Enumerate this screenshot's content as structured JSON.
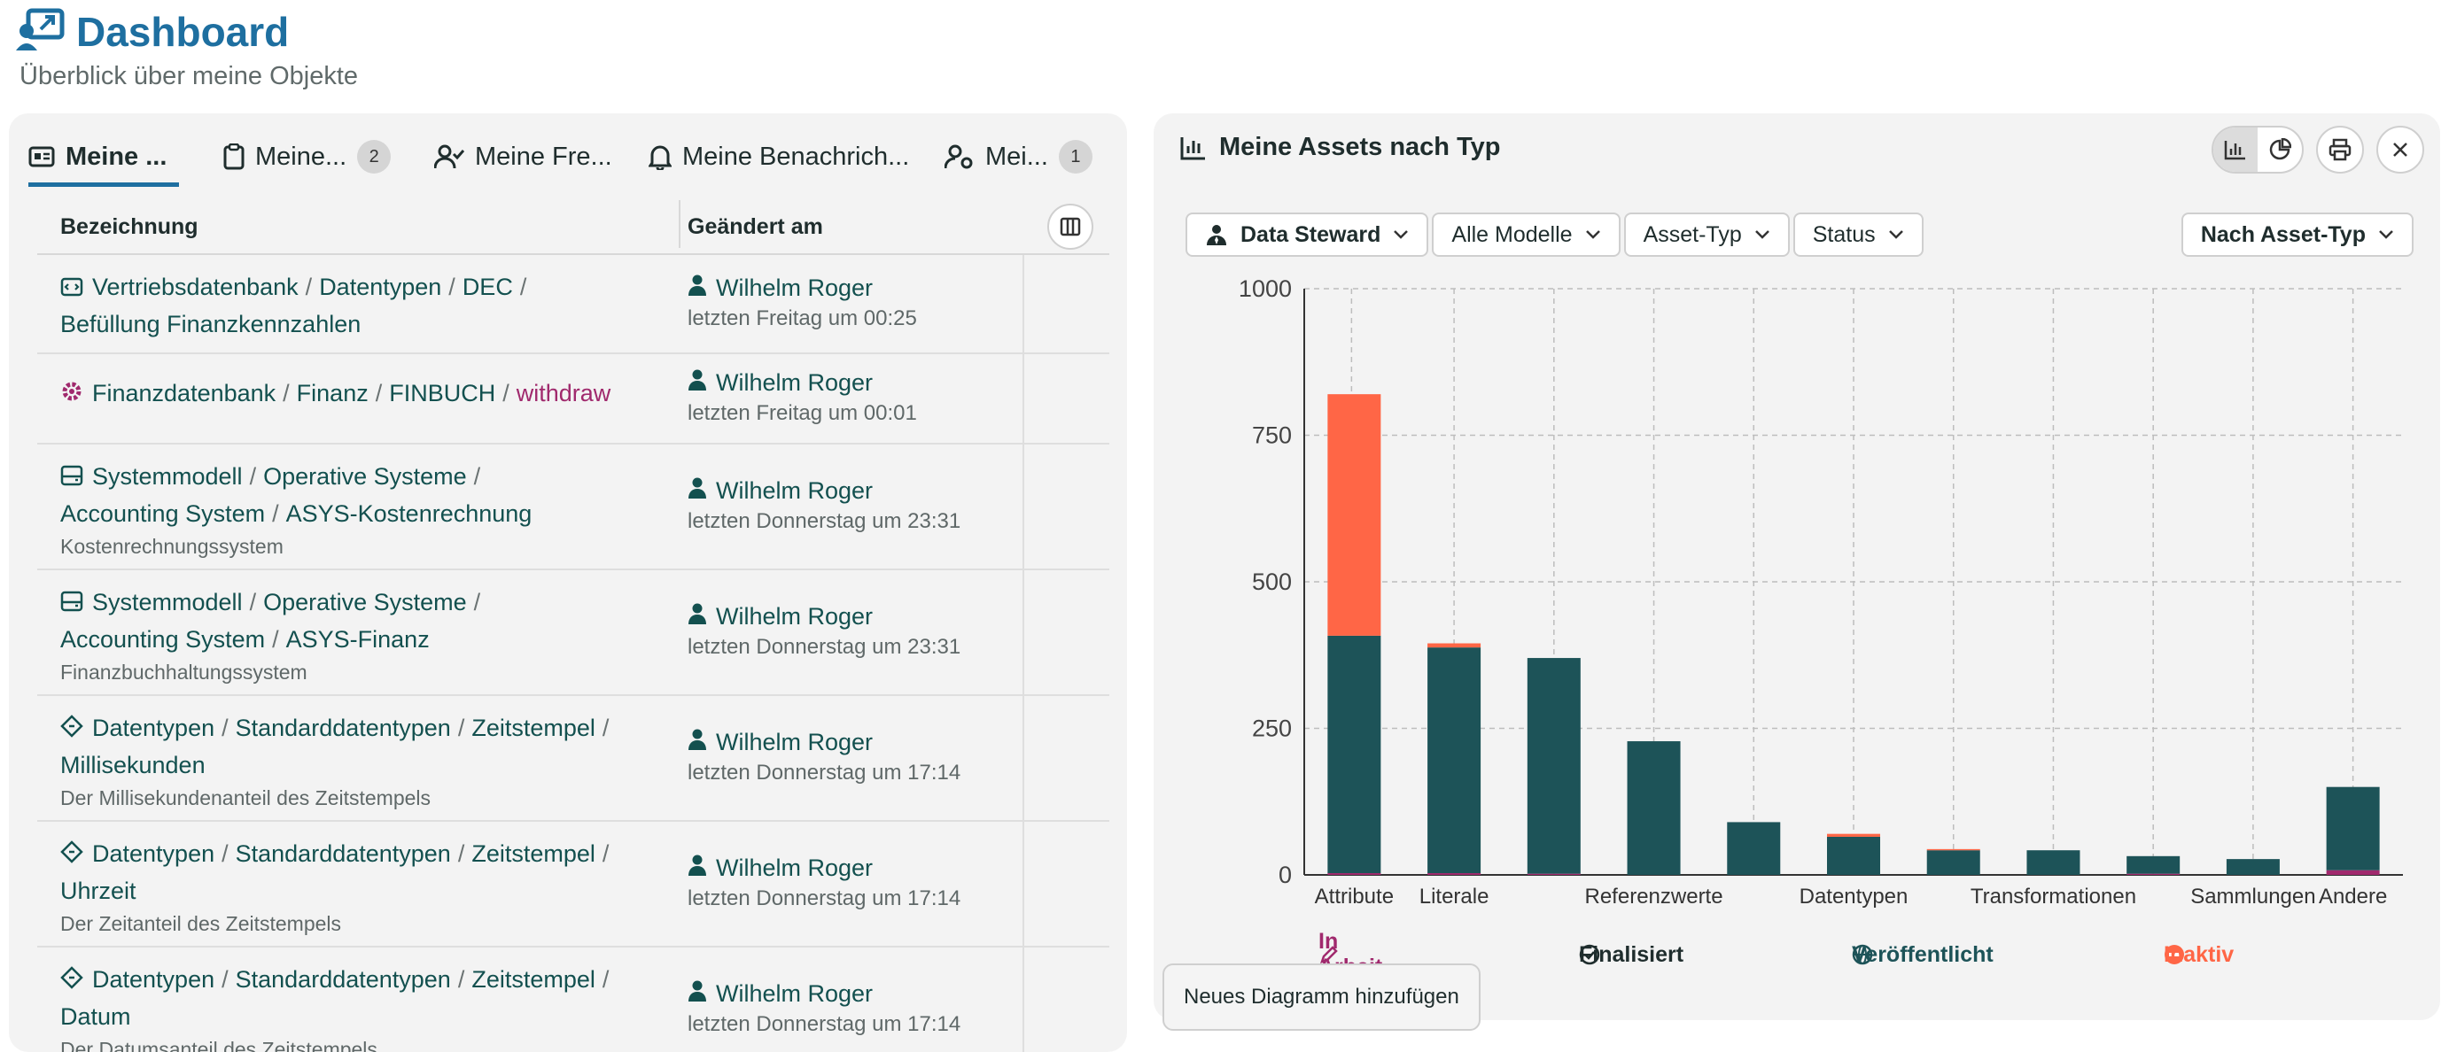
{
  "header": {
    "title": "Dashboard",
    "subtitle": "Überblick über meine Objekte"
  },
  "tabs": [
    {
      "label": "Meine ...",
      "active": true
    },
    {
      "label": "Meine...",
      "badge": "2"
    },
    {
      "label": "Meine Fre..."
    },
    {
      "label": "Meine Benachrich..."
    },
    {
      "label": "Mei...",
      "badge": "1"
    }
  ],
  "table": {
    "headers": {
      "name": "Bezeichnung",
      "changed": "Geändert am"
    },
    "rows": [
      {
        "icon": "code-icon",
        "line1": [
          "Vertriebsdatenbank",
          "Datentypen",
          "DEC"
        ],
        "line2": [
          "Befüllung Finanzkennzahlen"
        ],
        "user": "Wilhelm Roger",
        "when": "letzten Freitag um 00:25"
      },
      {
        "icon": "gear-icon",
        "line1": [
          "Finanzdatenbank",
          "Finanz",
          "FINBUCH"
        ],
        "line1_last": "withdraw",
        "user": "Wilhelm Roger",
        "when": "letzten Freitag um 00:01"
      },
      {
        "icon": "server-icon",
        "line1": [
          "Systemmodell",
          "Operative Systeme"
        ],
        "line2": [
          "Accounting System",
          "ASYS-Kostenrechnung"
        ],
        "sub": "Kostenrechnungssystem",
        "user": "Wilhelm Roger",
        "when": "letzten Donnerstag um 23:31"
      },
      {
        "icon": "server-icon",
        "line1": [
          "Systemmodell",
          "Operative Systeme"
        ],
        "line2": [
          "Accounting System",
          "ASYS-Finanz"
        ],
        "sub": "Finanzbuchhaltungssystem",
        "user": "Wilhelm Roger",
        "when": "letzten Donnerstag um 23:31"
      },
      {
        "icon": "diamond-icon",
        "line1": [
          "Datentypen",
          "Standarddatentypen",
          "Zeitstempel"
        ],
        "line2": [
          "Millisekunden"
        ],
        "sub": "Der Millisekundenanteil des Zeitstempels",
        "user": "Wilhelm Roger",
        "when": "letzten Donnerstag um 17:14"
      },
      {
        "icon": "diamond-icon",
        "line1": [
          "Datentypen",
          "Standarddatentypen",
          "Zeitstempel"
        ],
        "line2": [
          "Uhrzeit"
        ],
        "sub": "Der Zeitanteil des Zeitstempels",
        "user": "Wilhelm Roger",
        "when": "letzten Donnerstag um 17:14"
      },
      {
        "icon": "diamond-icon",
        "line1": [
          "Datentypen",
          "Standarddatentypen",
          "Zeitstempel"
        ],
        "line2": [
          "Datum"
        ],
        "sub": "Der Datumsanteil des Zeitstempels",
        "user": "Wilhelm Roger",
        "when": "letzten Donnerstag um 17:14"
      }
    ]
  },
  "chart_panel": {
    "title": "Meine Assets nach Typ",
    "filters": [
      {
        "label": "Data Steward",
        "icon": "user-tie-icon",
        "bold": true
      },
      {
        "label": "Alle Modelle"
      },
      {
        "label": "Asset-Typ"
      },
      {
        "label": "Status"
      }
    ],
    "group_by": "Nach Asset-Typ",
    "add_button": "Neues Diagramm hinzufügen"
  },
  "chart_data": {
    "type": "bar",
    "stacked": true,
    "categories": [
      "Attribute",
      "Literale",
      "Referenzwerte",
      "Referenzwerte2",
      "Datentypen",
      "Datentypen2",
      "Transformationen",
      "Transformationen2",
      "Sammlungen",
      "Sammlungen2",
      "Andere"
    ],
    "tick_labels": [
      "Attribute",
      "Literale",
      "",
      "Referenzwerte",
      "",
      "Datentypen",
      "",
      "Transformationen",
      "",
      "Sammlungen",
      "Andere"
    ],
    "series": [
      {
        "name": "In Arbeit",
        "color": "#a0296d",
        "values": [
          3,
          3,
          2,
          0,
          0,
          0,
          0,
          0,
          2,
          0,
          8
        ]
      },
      {
        "name": "Finalisiert",
        "color": "#1d5358",
        "values": [
          405,
          385,
          368,
          228,
          90,
          65,
          42,
          42,
          30,
          27,
          142
        ]
      },
      {
        "name": "Veröffentlicht",
        "color": "#2a7a86",
        "values": [
          0,
          0,
          0,
          0,
          0,
          0,
          0,
          0,
          0,
          0,
          0
        ]
      },
      {
        "name": "Inaktiv",
        "color": "#ff6646",
        "values": [
          412,
          7,
          0,
          0,
          0,
          5,
          2,
          0,
          0,
          0,
          0
        ]
      }
    ],
    "ylim": [
      0,
      1000
    ],
    "yticks": [
      0,
      250,
      500,
      750,
      1000
    ],
    "grid": true,
    "legend_position": "bottom"
  }
}
